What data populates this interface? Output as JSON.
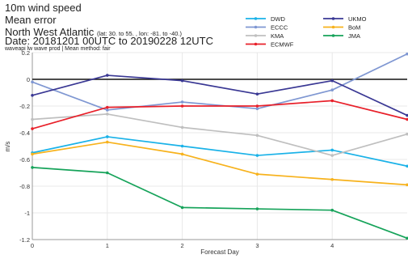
{
  "header": {
    "title": "10m wind speed",
    "metric": "Mean error",
    "region": "North West Atlantic",
    "region_bounds": "(lat: 30. to 55. , lon: -81. to -40.)",
    "date": "Date: 20181201 00UTC to 20190228 12UTC",
    "subtitle": "waveapi lw wave prod | Mean method: fair"
  },
  "colors": {
    "DWD": "#1ab2e8",
    "ECCC": "#7f97d2",
    "KMA": "#bfbfbf",
    "ECMWF": "#e8202a",
    "UKMO": "#3a3894",
    "BoM": "#f7b21c",
    "JMA": "#16a35a"
  },
  "chart_data": {
    "type": "line",
    "title": "10m wind speed",
    "xlabel": "Forecast Day",
    "ylabel": "m/s",
    "x": [
      0,
      1,
      2,
      3,
      4,
      5
    ],
    "x_ticks": [
      "0",
      "1",
      "2",
      "3",
      "4"
    ],
    "xlim": [
      0,
      5
    ],
    "y_ticks": [
      "0.2",
      "0",
      "-0.2",
      "-0.4",
      "-0.6",
      "-0.8",
      "-1",
      "-1.2"
    ],
    "ylim": [
      -1.2,
      0.2
    ],
    "zero_line": true,
    "legend_position": "top-right",
    "series": [
      {
        "name": "DWD",
        "values": [
          -0.55,
          -0.43,
          -0.5,
          -0.57,
          -0.53,
          -0.65
        ]
      },
      {
        "name": "ECCC",
        "values": [
          -0.02,
          -0.23,
          -0.17,
          -0.22,
          -0.08,
          0.19
        ]
      },
      {
        "name": "KMA",
        "values": [
          -0.3,
          -0.26,
          -0.36,
          -0.42,
          -0.57,
          -0.41
        ]
      },
      {
        "name": "ECMWF",
        "values": [
          -0.37,
          -0.21,
          -0.2,
          -0.2,
          -0.16,
          -0.3
        ]
      },
      {
        "name": "UKMO",
        "values": [
          -0.12,
          0.03,
          -0.01,
          -0.11,
          -0.01,
          -0.27
        ]
      },
      {
        "name": "BoM",
        "values": [
          -0.56,
          -0.47,
          -0.56,
          -0.71,
          -0.75,
          -0.79
        ]
      },
      {
        "name": "JMA",
        "values": [
          -0.66,
          -0.7,
          -0.96,
          -0.97,
          -0.98,
          -1.19
        ]
      }
    ]
  }
}
